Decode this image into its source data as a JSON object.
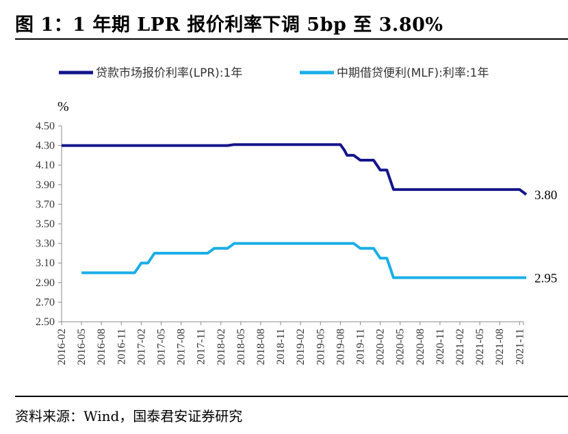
{
  "title": "图 1：1 年期 LPR 报价利率下调 5bp 至 3.80%",
  "source": "资料来源：Wind，国泰君安证券研究",
  "chart_data": {
    "type": "line",
    "ylabel": "%",
    "ylim": [
      2.5,
      4.5
    ],
    "yticks": [
      "4.50",
      "4.30",
      "4.10",
      "3.90",
      "3.70",
      "3.50",
      "3.30",
      "3.10",
      "2.90",
      "2.70",
      "2.50"
    ],
    "xticks": [
      "2016-02",
      "2016-05",
      "2016-08",
      "2016-11",
      "2017-02",
      "2017-05",
      "2017-08",
      "2017-11",
      "2018-02",
      "2018-05",
      "2018-08",
      "2018-11",
      "2019-02",
      "2019-05",
      "2019-08",
      "2019-11",
      "2020-02",
      "2020-05",
      "2020-08",
      "2020-11",
      "2021-02",
      "2021-05",
      "2021-08",
      "2021-11"
    ],
    "legend_position": "top",
    "series": [
      {
        "name": "贷款市场报价利率(LPR):1年",
        "color": "#14148c",
        "points": [
          [
            "2016-02",
            4.3
          ],
          [
            "2018-03",
            4.3
          ],
          [
            "2018-04",
            4.31
          ],
          [
            "2019-08",
            4.31
          ],
          [
            "2019-08-20",
            4.25
          ],
          [
            "2019-09",
            4.2
          ],
          [
            "2019-10",
            4.2
          ],
          [
            "2019-11",
            4.15
          ],
          [
            "2019-12",
            4.15
          ],
          [
            "2020-01",
            4.15
          ],
          [
            "2020-02",
            4.05
          ],
          [
            "2020-03",
            4.05
          ],
          [
            "2020-04",
            3.85
          ],
          [
            "2021-11",
            3.85
          ],
          [
            "2021-12",
            3.8
          ]
        ],
        "end_label": "3.80"
      },
      {
        "name": "中期借贷便利(MLF):利率:1年",
        "color": "#1aaee8",
        "points": [
          [
            "2016-05",
            3.0
          ],
          [
            "2017-01",
            3.0
          ],
          [
            "2017-02",
            3.1
          ],
          [
            "2017-03",
            3.1
          ],
          [
            "2017-04",
            3.2
          ],
          [
            "2017-12",
            3.2
          ],
          [
            "2018-01",
            3.25
          ],
          [
            "2018-03",
            3.25
          ],
          [
            "2018-04",
            3.3
          ],
          [
            "2019-10",
            3.3
          ],
          [
            "2019-11",
            3.25
          ],
          [
            "2020-01",
            3.25
          ],
          [
            "2020-02",
            3.15
          ],
          [
            "2020-03",
            3.15
          ],
          [
            "2020-04",
            2.95
          ],
          [
            "2021-12",
            2.95
          ]
        ],
        "end_label": "2.95"
      }
    ]
  }
}
